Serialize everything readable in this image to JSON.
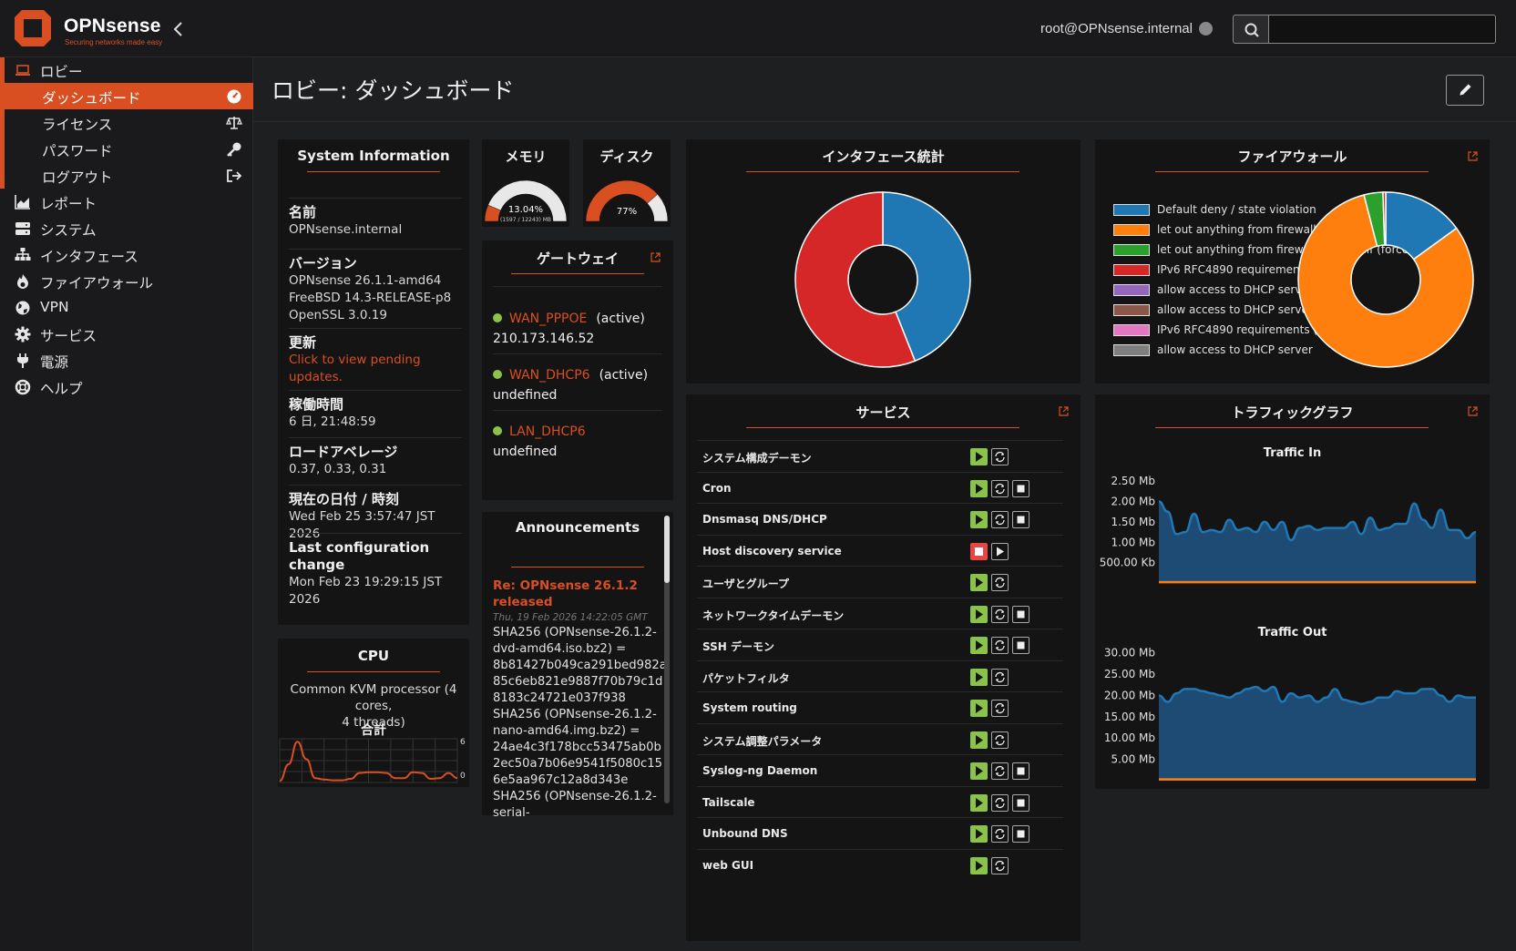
{
  "brand": {
    "name": "OPNsense",
    "tagline": "Securing networks made easy"
  },
  "header": {
    "user": "root@OPNsense.internal",
    "search_value": ""
  },
  "sidebar": {
    "items": [
      {
        "label": "ロビー",
        "icon": "laptop-icon"
      },
      {
        "label": "レポート",
        "icon": "area-chart-icon"
      },
      {
        "label": "システム",
        "icon": "server-icon"
      },
      {
        "label": "インタフェース",
        "icon": "sitemap-icon"
      },
      {
        "label": "ファイアウォール",
        "icon": "fire-icon"
      },
      {
        "label": "VPN",
        "icon": "globe-icon"
      },
      {
        "label": "サービス",
        "icon": "cog-icon"
      },
      {
        "label": "電源",
        "icon": "plug-icon"
      },
      {
        "label": "ヘルプ",
        "icon": "life-ring-icon"
      }
    ],
    "lobby_sub": [
      {
        "label": "ダッシュボード",
        "icon": "dashboard-icon"
      },
      {
        "label": "ライセンス",
        "icon": "balance-icon"
      },
      {
        "label": "パスワード",
        "icon": "key-icon"
      },
      {
        "label": "ログアウト",
        "icon": "sign-out-icon"
      }
    ]
  },
  "page": {
    "title": "ロビー: ダッシュボード"
  },
  "sysinfo": {
    "title": "System Information",
    "name_label": "名前",
    "name": "OPNsense.internal",
    "version_label": "バージョン",
    "version1": "OPNsense 26.1.1-amd64",
    "version2": "FreeBSD 14.3-RELEASE-p8",
    "version3": "OpenSSL 3.0.19",
    "updates_label": "更新",
    "updates1": "Click to view pending",
    "updates2": "updates.",
    "uptime_label": "稼働時間",
    "uptime": "6 日, 21:48:59",
    "load_label": "ロードアベレージ",
    "load": "0.37, 0.33, 0.31",
    "date_label": "現在の日付 / 時刻",
    "date": "Wed Feb 25 3:57:47 JST 2026",
    "lastcfg_label": "Last configuration change",
    "lastcfg1": "Mon Feb 23 19:29:15 JST",
    "lastcfg2": "2026"
  },
  "cpu": {
    "title": "CPU",
    "model1": "Common KVM processor (4 cores,",
    "model2": "4 threads)",
    "total_label": "合計",
    "scale_max": "6",
    "scale_min": "0",
    "samples": [
      0.2,
      2.5,
      5.6,
      3.2,
      0.6,
      0.4,
      0.3,
      0.3,
      0.5,
      1.3,
      1.4,
      1.4,
      1.3,
      0.6,
      0.6,
      1.4,
      1.3,
      0.5,
      0.6,
      1.3,
      0.6
    ]
  },
  "memory": {
    "title": "メモリ",
    "percent": "13.04%",
    "detail": "(1597 / 12243) MB",
    "fraction": 0.1304
  },
  "disk": {
    "title": "ディスク",
    "percent": "77%",
    "fraction": 0.77
  },
  "gateways": {
    "title": "ゲートウェイ",
    "items": [
      {
        "name": "WAN_PPPOE",
        "state": "(active)",
        "address": "210.173.146.52"
      },
      {
        "name": "WAN_DHCP6",
        "state": "(active)",
        "address": "undefined"
      },
      {
        "name": "LAN_DHCP6",
        "state": "",
        "address": "undefined"
      }
    ]
  },
  "announcements": {
    "title": "Announcements",
    "post_title1": "Re: OPNsense 26.1.2",
    "post_title2": "released",
    "post_date": "Thu, 19 Feb 2026 14:22:05 GMT",
    "lines": [
      "SHA256 (OPNsense-26.1.2-",
      "dvd-amd64.iso.bz2) =",
      "8b81427b049ca291bed982a",
      "85c6eb821e9887f70b79c1d",
      "8183c24721e037f938",
      "SHA256 (OPNsense-26.1.2-",
      "nano-amd64.img.bz2) =",
      "24ae4c3f178bcc53475ab0b",
      "2ec50a7b06e9541f5080c15",
      "6e5aa967c12a8d343e",
      "SHA256 (OPNsense-26.1.2-",
      "serial-"
    ]
  },
  "iface_stats": {
    "title": "インタフェース統計",
    "chart_data": {
      "type": "pie",
      "slices": [
        {
          "value": 44,
          "color": "#1f77b4"
        },
        {
          "value": 56,
          "color": "#d62728"
        }
      ]
    }
  },
  "firewall": {
    "title": "ファイアウォール",
    "legend": [
      {
        "label": "Default deny / state violation",
        "color": "#1f77b4"
      },
      {
        "label": "let out anything from firewall host itself",
        "color": "#ff7f0e"
      },
      {
        "label": "let out anything from firewall host itself (force gw)",
        "color": "#2ca02c"
      },
      {
        "label": "IPv6 RFC4890 requirements (ICMP)",
        "color": "#d62728"
      },
      {
        "label": "allow access to DHCP server",
        "color": "#9467bd"
      },
      {
        "label": "allow access to DHCP server",
        "color": "#8c564b"
      },
      {
        "label": "IPv6 RFC4890 requirements (ICMP)",
        "color": "#e377c2"
      },
      {
        "label": "allow access to DHCP server",
        "color": "#7f7f7f"
      }
    ],
    "chart_data": {
      "type": "pie",
      "slices": [
        {
          "value": 15,
          "color": "#1f77b4"
        },
        {
          "value": 81,
          "color": "#ff7f0e"
        },
        {
          "value": 3.5,
          "color": "#2ca02c"
        },
        {
          "value": 0.5,
          "color": "#d62728"
        }
      ]
    }
  },
  "services": {
    "title": "サービス",
    "items": [
      {
        "name": "システム構成デーモン",
        "running": true,
        "stop": false
      },
      {
        "name": "Cron",
        "running": true,
        "stop": true
      },
      {
        "name": "Dnsmasq DNS/DHCP",
        "running": true,
        "stop": true
      },
      {
        "name": "Host discovery service",
        "running": false,
        "stop": false
      },
      {
        "name": "ユーザとグループ",
        "running": true,
        "stop": false
      },
      {
        "name": "ネットワークタイムデーモン",
        "running": true,
        "stop": true
      },
      {
        "name": "SSH デーモン",
        "running": true,
        "stop": true
      },
      {
        "name": "パケットフィルタ",
        "running": true,
        "stop": false
      },
      {
        "name": "System routing",
        "running": true,
        "stop": false
      },
      {
        "name": "システム調整パラメータ",
        "running": true,
        "stop": false
      },
      {
        "name": "Syslog-ng Daemon",
        "running": true,
        "stop": true
      },
      {
        "name": "Tailscale",
        "running": true,
        "stop": true
      },
      {
        "name": "Unbound DNS",
        "running": true,
        "stop": true
      },
      {
        "name": "web GUI",
        "running": true,
        "stop": false
      }
    ]
  },
  "traffic": {
    "title": "トラフィックグラフ",
    "in_title": "Traffic In",
    "out_title": "Traffic Out",
    "chart_data": [
      {
        "type": "area",
        "title": "Traffic In",
        "unit": "Mb",
        "yticks": [
          "2.50 Mb",
          "2.00 Mb",
          "1.50 Mb",
          "1.00 Mb",
          "500.00 Kb"
        ],
        "ylim": [
          0,
          2.75
        ],
        "series": [
          {
            "color": "#1f77b4",
            "values": [
              2.0,
              1.75,
              1.2,
              1.25,
              1.7,
              1.25,
              1.3,
              1.25,
              1.55,
              1.3,
              1.35,
              1.25,
              1.5,
              1.3,
              1.5,
              1.05,
              1.35,
              1.4,
              1.3,
              1.35,
              1.35,
              1.35,
              1.5,
              1.2,
              1.6,
              1.3,
              1.35,
              1.45,
              1.45,
              1.95,
              1.55,
              1.35,
              1.8,
              1.3,
              1.3,
              1.1,
              1.25
            ]
          },
          {
            "color": "#ff7f0e",
            "values": [
              0.02,
              0.02,
              0.02,
              0.02,
              0.02,
              0.02,
              0.02,
              0.02,
              0.02,
              0.02,
              0.02,
              0.02,
              0.02,
              0.02,
              0.02,
              0.02,
              0.02,
              0.02,
              0.02,
              0.02,
              0.02,
              0.02,
              0.02,
              0.02,
              0.02,
              0.02,
              0.02,
              0.02,
              0.02,
              0.02,
              0.02,
              0.02,
              0.02,
              0.02,
              0.02,
              0.02,
              0.02
            ]
          }
        ]
      },
      {
        "type": "area",
        "title": "Traffic Out",
        "unit": "Mb",
        "yticks": [
          "30.00 Mb",
          "25.00 Mb",
          "20.00 Mb",
          "15.00 Mb",
          "10.00 Mb",
          "5.00 Mb"
        ],
        "ylim": [
          0,
          31
        ],
        "series": [
          {
            "color": "#1f77b4",
            "values": [
              20.0,
              18.5,
              20.5,
              21.5,
              21.5,
              21.0,
              20.5,
              20.0,
              19.5,
              20.5,
              21.5,
              22.0,
              21.0,
              22.0,
              18.5,
              20.5,
              19.5,
              20.0,
              18.5,
              19.5,
              21.5,
              19.0,
              18.5,
              18.0,
              18.5,
              19.5,
              19.5,
              21.0,
              20.5,
              20.5,
              21.5,
              21.5,
              20.0,
              18.5,
              20.0,
              19.5,
              19.5
            ]
          },
          {
            "color": "#ff7f0e",
            "values": [
              0.3,
              0.3,
              0.3,
              0.3,
              0.3,
              0.3,
              0.3,
              0.3,
              0.3,
              0.3,
              0.3,
              0.3,
              0.3,
              0.3,
              0.3,
              0.3,
              0.3,
              0.3,
              0.3,
              0.3,
              0.3,
              0.3,
              0.3,
              0.3,
              0.3,
              0.3,
              0.3,
              0.3,
              0.3,
              0.3,
              0.3,
              0.3,
              0.3,
              0.3,
              0.3,
              0.3,
              0.3
            ]
          }
        ]
      }
    ]
  }
}
